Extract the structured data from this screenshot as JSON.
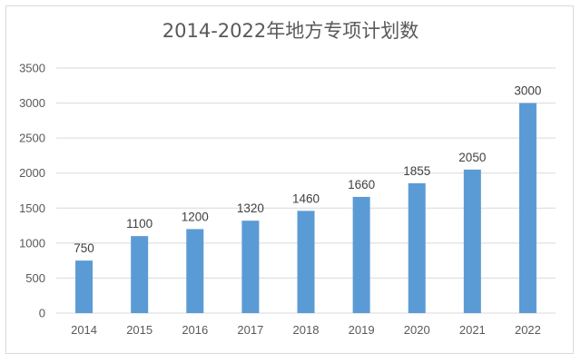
{
  "chart_data": {
    "type": "bar",
    "title": "2014-2022年地方专项计划数",
    "categories": [
      "2014",
      "2015",
      "2016",
      "2017",
      "2018",
      "2019",
      "2020",
      "2021",
      "2022"
    ],
    "series": [
      {
        "values": [
          750,
          1100,
          1200,
          1320,
          1460,
          1660,
          1855,
          2050,
          3000
        ]
      }
    ],
    "data_labels": [
      "750",
      "1100",
      "1200",
      "1320",
      "1460",
      "1660",
      "1855",
      "2050",
      "3000"
    ],
    "y_ticks": [
      "0",
      "500",
      "1000",
      "1500",
      "2000",
      "2500",
      "3000",
      "3500"
    ],
    "ylim": [
      0,
      3500
    ],
    "grid": true,
    "legend": "none",
    "bar_color": "#5b9bd5",
    "grid_color": "#d9d9d9"
  }
}
